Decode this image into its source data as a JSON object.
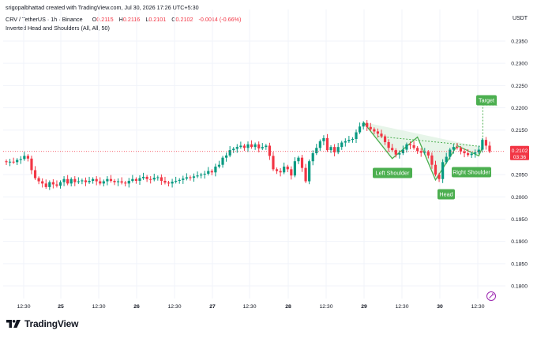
{
  "header": {
    "credit": "srigopalbhattad created with TradingView.com, Jul 30, 2026 17:26 UTC+5:30",
    "symbol": "CRV / TetherUS · 1h · Binance",
    "o_label": "O",
    "o_value": "0.2115",
    "h_label": "H",
    "h_value": "0.2116",
    "l_label": "L",
    "l_value": "0.2101",
    "c_label": "C",
    "c_value": "0.2102",
    "change": "-0.0014 (-0.66%)",
    "indicator": "Inverted Head and Shoulders (All, All, 50)"
  },
  "brand": {
    "name": "TradingView",
    "logo_icon": "tradingview-logo-icon"
  },
  "colors": {
    "up": "#089981",
    "down": "#f23645",
    "pattern": "#4caf50",
    "pattern_fill": "#e3f3e5",
    "grid": "#f0f3fa",
    "text": "#131722"
  },
  "chart_data": {
    "type": "candlestick",
    "symbol": "CRV / TetherUS",
    "interval": "1h",
    "exchange": "Binance",
    "currency": "USDT",
    "y_ticks": [
      "0.2350",
      "0.2300",
      "0.2250",
      "0.2200",
      "0.2150",
      "0.2050",
      "0.2000",
      "0.1950",
      "0.1900",
      "0.1850",
      "0.1800"
    ],
    "ylim": [
      0.1775,
      0.238
    ],
    "x_ticks": [
      "12:30",
      "25",
      "12:30",
      "26",
      "12:30",
      "27",
      "12:30",
      "28",
      "12:30",
      "29",
      "12:30",
      "30",
      "12:30"
    ],
    "last_price": "0.2102",
    "countdown": "03:36",
    "closes": [
      0.2078,
      0.2079,
      0.2078,
      0.2083,
      0.2085,
      0.2092,
      0.2086,
      0.206,
      0.2042,
      0.2035,
      0.203,
      0.2022,
      0.2033,
      0.2028,
      0.2025,
      0.2033,
      0.204,
      0.203,
      0.204,
      0.2033,
      0.2035,
      0.2037,
      0.2033,
      0.2036,
      0.204,
      0.2035,
      0.203,
      0.2035,
      0.204,
      0.2036,
      0.2033,
      0.2035,
      0.2032,
      0.203,
      0.2036,
      0.204,
      0.2036,
      0.2042,
      0.2045,
      0.204,
      0.2039,
      0.2043,
      0.2044,
      0.2036,
      0.2032,
      0.203,
      0.2034,
      0.2036,
      0.2038,
      0.2041,
      0.2044,
      0.2043,
      0.2046,
      0.2048,
      0.205,
      0.2052,
      0.2058,
      0.2055,
      0.2068,
      0.2072,
      0.2088,
      0.2093,
      0.2105,
      0.2108,
      0.2112,
      0.2115,
      0.211,
      0.2118,
      0.2112,
      0.2118,
      0.2109,
      0.2112,
      0.2115,
      0.2092,
      0.2062,
      0.2058,
      0.2055,
      0.2068,
      0.2062,
      0.2048,
      0.208,
      0.2088,
      0.2065,
      0.2035,
      0.208,
      0.2098,
      0.211,
      0.2125,
      0.2132,
      0.2105,
      0.2112,
      0.21,
      0.2112,
      0.2122,
      0.2125,
      0.2128,
      0.213,
      0.2145,
      0.2158,
      0.2166,
      0.2157,
      0.2152,
      0.2147,
      0.2142,
      0.2136,
      0.2123,
      0.211,
      0.2105,
      0.2095,
      0.2098,
      0.2106,
      0.2118,
      0.2116,
      0.211,
      0.2103,
      0.2099,
      0.2101,
      0.2093,
      0.2072,
      0.205,
      0.204,
      0.2078,
      0.209,
      0.2106,
      0.2112,
      0.211,
      0.2102,
      0.2098,
      0.2094,
      0.2097,
      0.21,
      0.2106,
      0.2128,
      0.2115,
      0.2102
    ],
    "x_range": [
      "Jul 24",
      "Jul 30"
    ],
    "pattern": {
      "name": "Inverted Head and Shoulders",
      "labels": {
        "left_shoulder": "Left Shoulder",
        "head": "Head",
        "right_shoulder": "Right Shoulder",
        "target": "Target"
      },
      "target_price": 0.2206,
      "neckline_price": 0.212
    }
  }
}
